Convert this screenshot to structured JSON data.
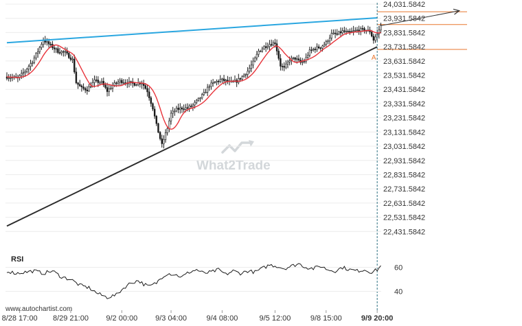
{
  "chart_data": {
    "type": "candlestick",
    "title": "",
    "price_axis": {
      "min": 22331.5842,
      "max": 24031.5842,
      "ticks": [
        "24,031.5842",
        "23,931.5842",
        "23,831.5842",
        "23,731.5842",
        "23,631.5842",
        "23,531.5842",
        "23,431.5842",
        "23,331.5842",
        "23,231.5842",
        "23,131.5842",
        "23,031.5842",
        "22,931.5842",
        "22,831.5842",
        "22,731.5842",
        "22,631.5842",
        "22,531.5842",
        "22,431.5842"
      ],
      "tick_values": [
        24031.5842,
        23931.5842,
        23831.5842,
        23731.5842,
        23631.5842,
        23531.5842,
        23431.5842,
        23331.5842,
        23231.5842,
        23131.5842,
        23031.5842,
        22931.5842,
        22831.5842,
        22731.5842,
        22631.5842,
        22531.5842,
        22431.5842
      ]
    },
    "time_axis": {
      "labels": [
        "8/28 17:00",
        "8/29 21:00",
        "9/2 00:00",
        "9/3 04:00",
        "9/4 08:00",
        "9/5 12:00",
        "9/8 15:00",
        "9/9 20:00"
      ],
      "label_index": [
        7,
        35,
        63,
        90,
        118,
        147,
        175,
        203
      ],
      "last_label_bold": true,
      "bar_count": 206
    },
    "price_series": {
      "name": "price",
      "anchors": [
        [
          0,
          23520
        ],
        [
          6,
          23510
        ],
        [
          10,
          23560
        ],
        [
          14,
          23630
        ],
        [
          17,
          23700
        ],
        [
          20,
          23780
        ],
        [
          24,
          23740
        ],
        [
          28,
          23700
        ],
        [
          32,
          23690
        ],
        [
          36,
          23640
        ],
        [
          38,
          23480
        ],
        [
          41,
          23440
        ],
        [
          44,
          23430
        ],
        [
          48,
          23490
        ],
        [
          52,
          23480
        ],
        [
          55,
          23420
        ],
        [
          58,
          23460
        ],
        [
          62,
          23490
        ],
        [
          66,
          23480
        ],
        [
          70,
          23470
        ],
        [
          74,
          23480
        ],
        [
          77,
          23420
        ],
        [
          80,
          23300
        ],
        [
          82,
          23180
        ],
        [
          85,
          23040
        ],
        [
          88,
          23160
        ],
        [
          90,
          23260
        ],
        [
          93,
          23290
        ],
        [
          96,
          23300
        ],
        [
          99,
          23300
        ],
        [
          102,
          23320
        ],
        [
          105,
          23360
        ],
        [
          108,
          23400
        ],
        [
          111,
          23460
        ],
        [
          114,
          23480
        ],
        [
          117,
          23500
        ],
        [
          120,
          23490
        ],
        [
          123,
          23480
        ],
        [
          126,
          23490
        ],
        [
          129,
          23520
        ],
        [
          132,
          23560
        ],
        [
          135,
          23620
        ],
        [
          138,
          23700
        ],
        [
          141,
          23730
        ],
        [
          144,
          23750
        ],
        [
          147,
          23760
        ],
        [
          150,
          23600
        ],
        [
          152,
          23580
        ],
        [
          155,
          23640
        ],
        [
          158,
          23650
        ],
        [
          161,
          23620
        ],
        [
          163,
          23630
        ],
        [
          166,
          23700
        ],
        [
          169,
          23720
        ],
        [
          172,
          23730
        ],
        [
          175,
          23760
        ],
        [
          178,
          23820
        ],
        [
          181,
          23820
        ],
        [
          184,
          23840
        ],
        [
          187,
          23830
        ],
        [
          190,
          23840
        ],
        [
          193,
          23850
        ],
        [
          196,
          23850
        ],
        [
          199,
          23840
        ],
        [
          201,
          23780
        ],
        [
          203,
          23820
        ],
        [
          205,
          23880
        ]
      ]
    },
    "moving_average": {
      "name": "MA",
      "color": "#e8333a"
    },
    "trendlines": [
      {
        "from": [
          0,
          23760
        ],
        "to": [
          203,
          23935
        ],
        "color": "#29a6e0"
      },
      {
        "from": [
          0,
          22470
        ],
        "to": [
          203,
          23731
        ],
        "color": "#2b2b2b"
      }
    ],
    "projection_arrow": {
      "from": [
        205,
        23880
      ],
      "to": [
        248,
        23985
      ],
      "color": "#333333"
    },
    "horizontal_levels": [
      {
        "value": 23978,
        "color": "#e8762c"
      },
      {
        "value": 23888,
        "color": "#e8762c"
      },
      {
        "value": 23713,
        "color": "#e8762c"
      }
    ],
    "point_labels": [
      {
        "text": "A",
        "at": [
          201,
          23660
        ]
      }
    ],
    "current_time_index": 203,
    "rsi": {
      "label": "RSI",
      "ticks": [
        "60",
        "40"
      ],
      "tick_values": [
        60,
        40
      ],
      "range": [
        30,
        70
      ],
      "anchors": [
        [
          0,
          57
        ],
        [
          5,
          55
        ],
        [
          10,
          56
        ],
        [
          15,
          57
        ],
        [
          20,
          55
        ],
        [
          25,
          57
        ],
        [
          30,
          52
        ],
        [
          35,
          50
        ],
        [
          40,
          45
        ],
        [
          45,
          43
        ],
        [
          50,
          38
        ],
        [
          55,
          35
        ],
        [
          60,
          37
        ],
        [
          62,
          40
        ],
        [
          65,
          44
        ],
        [
          68,
          47
        ],
        [
          72,
          49
        ],
        [
          75,
          46
        ],
        [
          78,
          44
        ],
        [
          82,
          47
        ],
        [
          85,
          52
        ],
        [
          88,
          55
        ],
        [
          92,
          54
        ],
        [
          96,
          52
        ],
        [
          100,
          56
        ],
        [
          104,
          58
        ],
        [
          108,
          55
        ],
        [
          112,
          56
        ],
        [
          116,
          58
        ],
        [
          120,
          54
        ],
        [
          124,
          57
        ],
        [
          128,
          55
        ],
        [
          132,
          57
        ],
        [
          136,
          56
        ],
        [
          140,
          59
        ],
        [
          144,
          62
        ],
        [
          148,
          61
        ],
        [
          152,
          59
        ],
        [
          156,
          61
        ],
        [
          160,
          63
        ],
        [
          164,
          60
        ],
        [
          168,
          59
        ],
        [
          172,
          61
        ],
        [
          176,
          58
        ],
        [
          180,
          57
        ],
        [
          184,
          60
        ],
        [
          188,
          58
        ],
        [
          192,
          57
        ],
        [
          196,
          58
        ],
        [
          200,
          56
        ],
        [
          203,
          58
        ],
        [
          205,
          61
        ]
      ]
    }
  },
  "watermark": {
    "text": "What2Trade",
    "icon": "trend-arrow-icon"
  },
  "footer": {
    "source": "www.autochartist.com"
  },
  "colors": {
    "candle": "#1a1a1a",
    "grid": "#ececec",
    "ma": "#e8333a",
    "upper_trendline": "#29a6e0",
    "lower_trendline": "#2b2b2b",
    "level": "#e8762c",
    "current_time_line": "#2b6f7f"
  }
}
